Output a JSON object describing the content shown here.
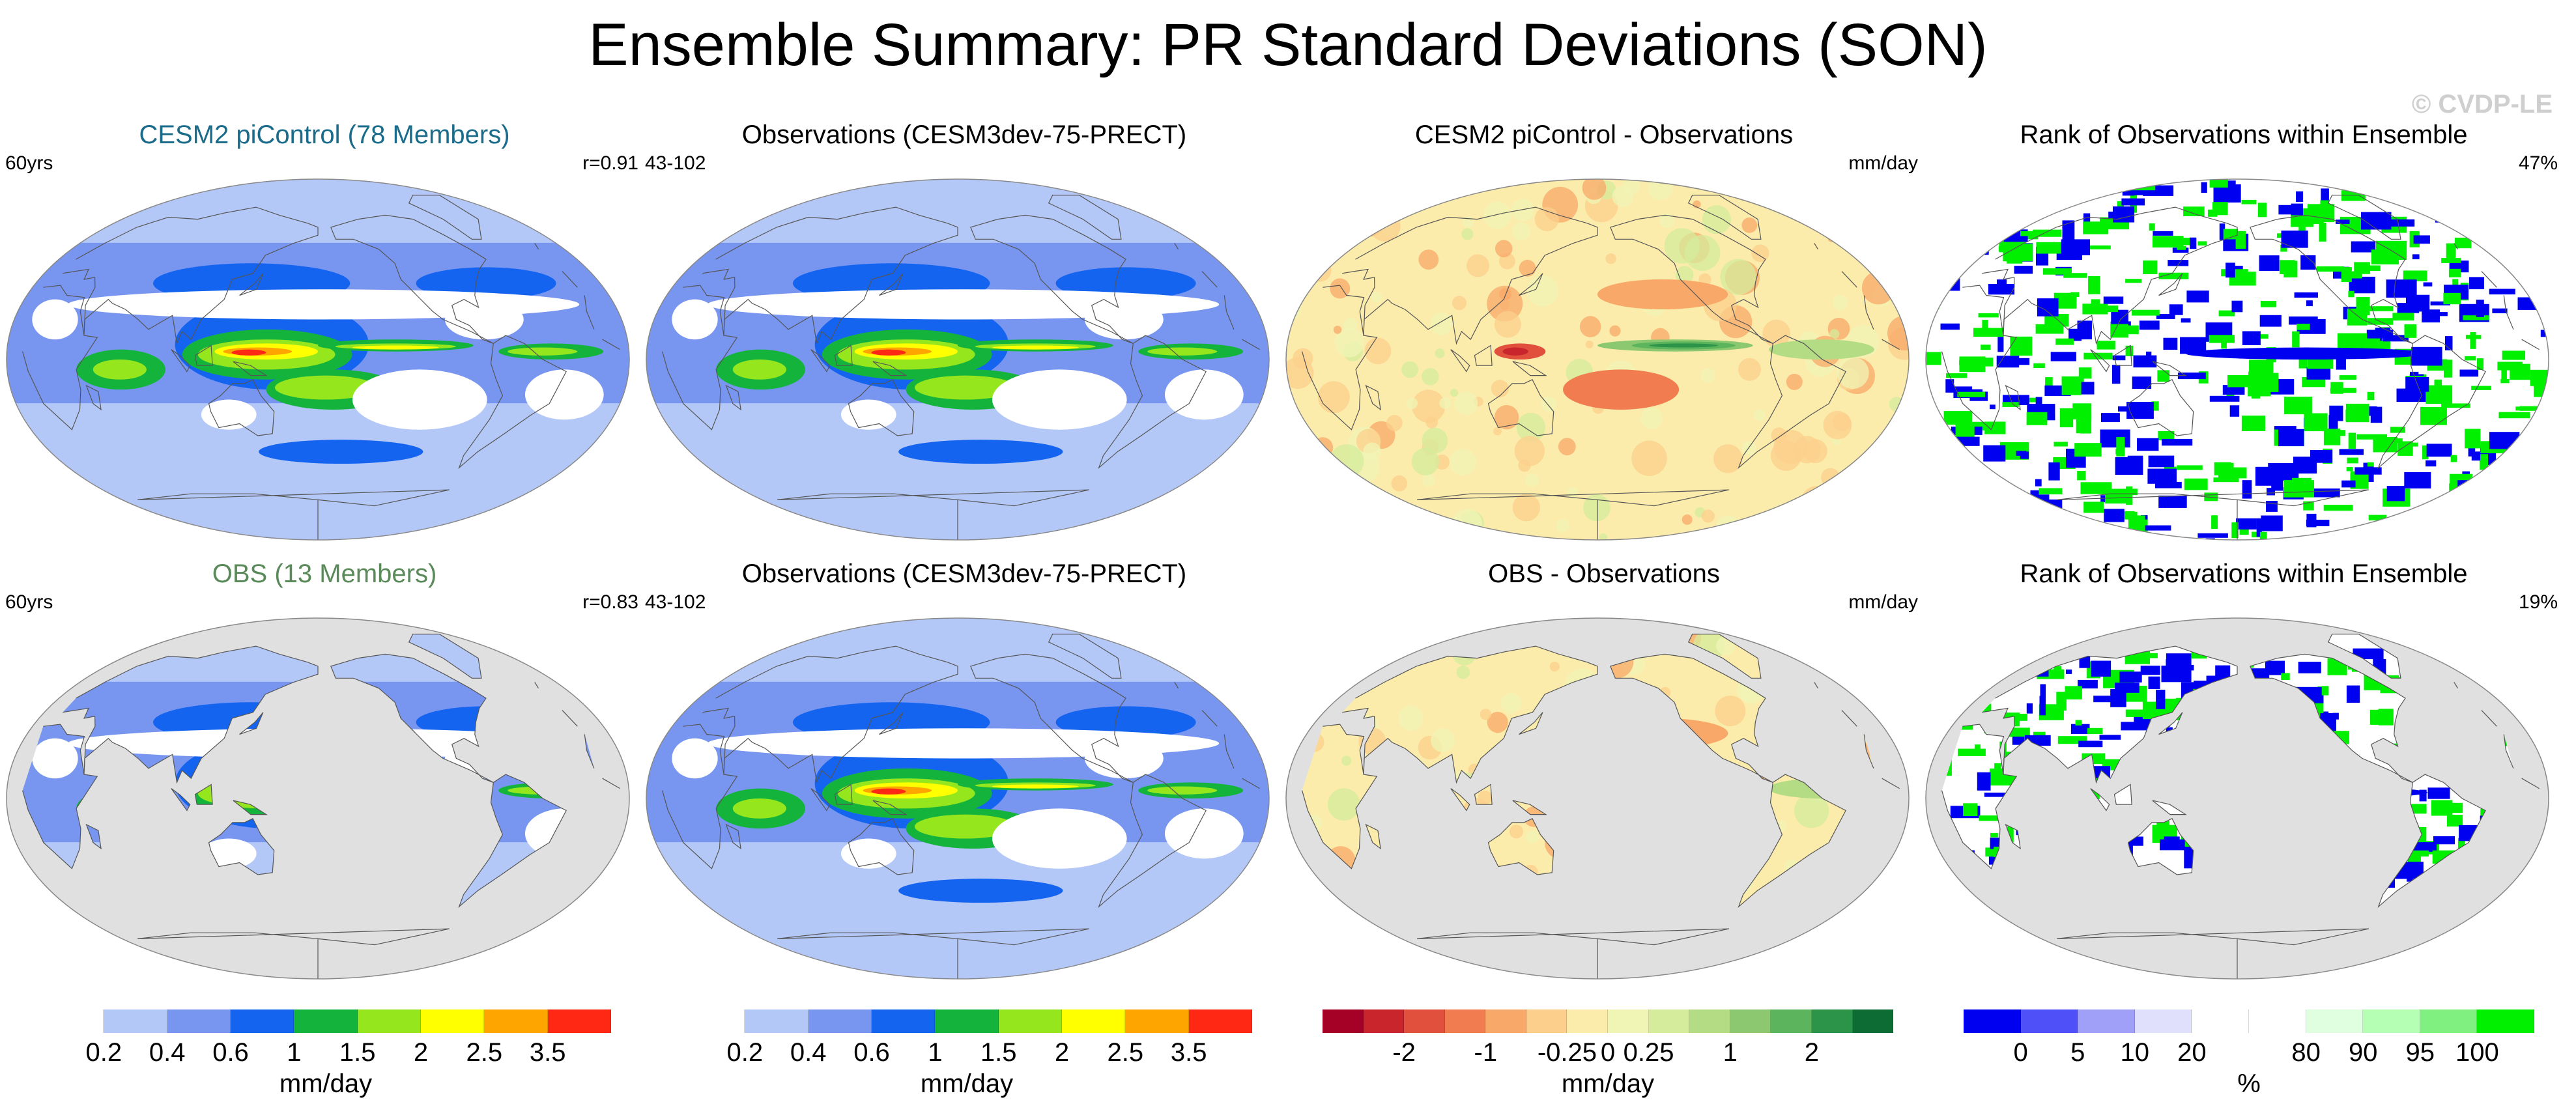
{
  "title": "Ensemble Summary: PR Standard Deviations (SON)",
  "watermark": "© CVDP-LE",
  "panels": [
    {
      "id": "p1",
      "title": "CESM2 piControl (78 Members)",
      "title_color": "#1b6b8a",
      "left": "60yrs",
      "right": "r=0.91",
      "kind": "model_full"
    },
    {
      "id": "p2",
      "title": "Observations (CESM3dev-75-PRECT)",
      "title_color": "#000000",
      "left": "43-102",
      "right": "",
      "kind": "obs_full"
    },
    {
      "id": "p3",
      "title": "CESM2 piControl - Observations",
      "title_color": "#000000",
      "left": "",
      "right": "mm/day",
      "kind": "diff_full"
    },
    {
      "id": "p4",
      "title": "Rank of Observations within Ensemble",
      "title_color": "#000000",
      "left": "",
      "right": "47%",
      "kind": "rank_full"
    },
    {
      "id": "p5",
      "title": "OBS (13 Members)",
      "title_color": "#5a8a5a",
      "left": "60yrs",
      "right": "r=0.83",
      "kind": "model_land"
    },
    {
      "id": "p6",
      "title": "Observations (CESM3dev-75-PRECT)",
      "title_color": "#000000",
      "left": "43-102",
      "right": "",
      "kind": "obs_full"
    },
    {
      "id": "p7",
      "title": "OBS - Observations",
      "title_color": "#000000",
      "left": "",
      "right": "mm/day",
      "kind": "diff_land"
    },
    {
      "id": "p8",
      "title": "Rank of Observations within Ensemble",
      "title_color": "#000000",
      "left": "",
      "right": "19%",
      "kind": "rank_land"
    }
  ],
  "colorbars": [
    {
      "id": "cb1",
      "label": "mm/day",
      "colors": [
        "#ffffff",
        "#b4c8f8",
        "#7896f0",
        "#1464f0",
        "#14b43c",
        "#96e61e",
        "#ffff00",
        "#ffa500",
        "#ff2814"
      ],
      "ticks": [
        "0.2",
        "0.4",
        "0.6",
        "1",
        "1.5",
        "2",
        "2.5",
        "3.5"
      ]
    },
    {
      "id": "cb2",
      "label": "mm/day",
      "colors": [
        "#ffffff",
        "#b4c8f8",
        "#7896f0",
        "#1464f0",
        "#14b43c",
        "#96e61e",
        "#ffff00",
        "#ffa500",
        "#ff2814"
      ],
      "ticks": [
        "0.2",
        "0.4",
        "0.6",
        "1",
        "1.5",
        "2",
        "2.5",
        "3.5"
      ]
    },
    {
      "id": "cb3",
      "label": "mm/day",
      "colors": [
        "#a50026",
        "#c8252c",
        "#e0503c",
        "#f07c50",
        "#f8a868",
        "#fcd08c",
        "#fcecac",
        "#f0f4b4",
        "#d4ec9c",
        "#b4dc84",
        "#8cc870",
        "#5cb45c",
        "#2c9448",
        "#0c6c34"
      ],
      "ticks": [
        "-2",
        "-1",
        "-0.25",
        "0",
        "0.25",
        "1",
        "2"
      ]
    },
    {
      "id": "cb4",
      "label": "%",
      "colors": [
        "#0000f0",
        "#5050f8",
        "#a0a0f8",
        "#e0e0fc",
        "#ffffff",
        "#ffffff",
        "#e0ffe0",
        "#b4ffb4",
        "#80f080",
        "#00f000"
      ],
      "ticks": [
        "0",
        "5",
        "10",
        "20",
        "80",
        "90",
        "95",
        "100"
      ]
    }
  ]
}
